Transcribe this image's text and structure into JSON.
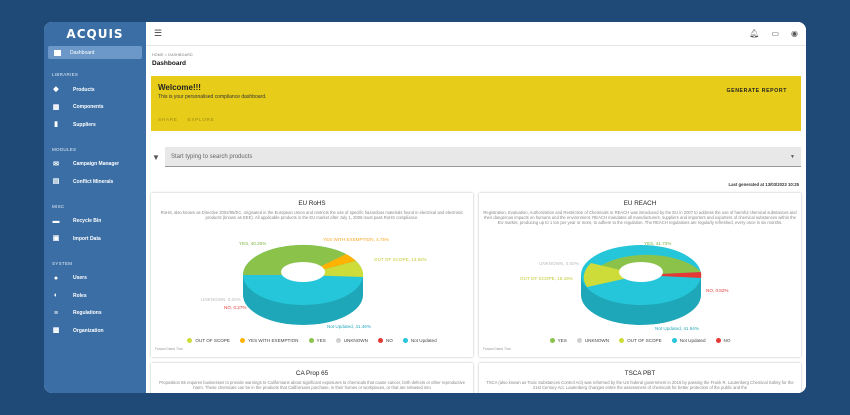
{
  "app": {
    "logo": "ACQUIS"
  },
  "sidebar": {
    "active": {
      "label": "Dashboard",
      "icon": "dashboard-icon"
    },
    "sections": [
      {
        "title": "LIBRARIES",
        "items": [
          {
            "label": "Products",
            "icon": "products-icon"
          },
          {
            "label": "Components",
            "icon": "components-icon"
          },
          {
            "label": "Suppliers",
            "icon": "suppliers-icon"
          }
        ]
      },
      {
        "title": "MODULES",
        "items": [
          {
            "label": "Campaign Manager",
            "icon": "mail-icon"
          },
          {
            "label": "Conflict Minerals",
            "icon": "chat-icon"
          }
        ]
      },
      {
        "title": "MISC",
        "items": [
          {
            "label": "Recycle Bin",
            "icon": "trash-icon"
          },
          {
            "label": "Import Data",
            "icon": "import-icon"
          }
        ]
      },
      {
        "title": "SYSTEM",
        "items": [
          {
            "label": "Users",
            "icon": "users-icon"
          },
          {
            "label": "Roles",
            "icon": "roles-icon"
          },
          {
            "label": "Regulations",
            "icon": "regulations-icon"
          },
          {
            "label": "Organization",
            "icon": "organization-icon"
          }
        ]
      }
    ]
  },
  "header": {
    "breadcrumb": "HOME  >  DASHBOARD",
    "title": "Dashboard"
  },
  "banner": {
    "title": "Welcome!!!",
    "subtitle": "This is your personalised compliance dashboard.",
    "generate": "GENERATE REPORT",
    "share": "SHARE",
    "explore": "EXPLORE",
    "color": "#e8cc1a"
  },
  "search": {
    "placeholder": "Start typing to search products"
  },
  "last_generated": "Last generated at 13/03/2023 10:25",
  "trial_note": "FusionCharts Trial",
  "cards": [
    {
      "title": "EU RoHS",
      "desc": "RoHS, also known as Directive 2002/95/EC, originated in the European Union and restricts the use of specific hazardous materials found in electrical and electronic products (known as EEE). All applicable products in the EU market after July 1, 2006 must pass RoHS compliance.",
      "labels": {
        "yes": "YES, 40.26%",
        "exemption": "YES WITH EXEMPTION, 4.75%",
        "outofscope": "OUT OF SCOPE, 13.92%",
        "unknown": "UNKNOWN, 0.00%",
        "no": "NO, 0.27%",
        "notupdated": "Not Updated, 41.46%"
      },
      "legend": [
        "OUT OF SCOPE",
        "YES WITH EXEMPTION",
        "YES",
        "UNKNOWN",
        "NO",
        "Not Updated"
      ]
    },
    {
      "title": "EU REACH",
      "desc": "Registration, Evaluation, Authorization and Restriction of Chemicals or REACH was introduced by the EU in 2007 to address the use of harmful chemical substances and their dangerous impacts on humans and the environment. REACH mandates all manufacturers, suppliers and importers and exporters of chemical substances within the EU market, producing up to 1 ton per year or more, to adhere to the regulation. The REACH regulations are regularly refreshed, every once in six months.",
      "labels": {
        "yes": "YES, 41.73%",
        "unknown": "UNKNOWN, 0.00%",
        "outofscope": "OUT OF SCOPE, 15.15%",
        "no": "NO, 0.82%",
        "notupdated": "Not Updated, 41.94%"
      },
      "legend": [
        "YES",
        "UNKNOWN",
        "OUT OF SCOPE",
        "Not Updated",
        "NO"
      ]
    }
  ],
  "cards_bottom": [
    {
      "title": "CA Prop 65",
      "desc": "Proposition 65 requires businesses to provide warnings to Californians about significant exposures to chemicals that cause cancer, birth defects or other reproductive harm. These chemicals can be in the products that Californians purchase, in their homes or workplaces, or that are released into"
    },
    {
      "title": "TSCA PBT",
      "desc": "TSCA (also known as Toxic Substances Control Act) was reformed by the US federal government in 2016 by passing the Frank R. Lautenberg Chemical Safety for the 21st Century Act. Lautenberg changes entire the assessment of chemicals for better protection of the public and the"
    }
  ],
  "colors": {
    "yes": "#8bc34a",
    "exemption": "#ffb300",
    "outofscope": "#cddc39",
    "unknown": "#cfcfcf",
    "no": "#e53935",
    "notupdated": "#26c6da"
  }
}
